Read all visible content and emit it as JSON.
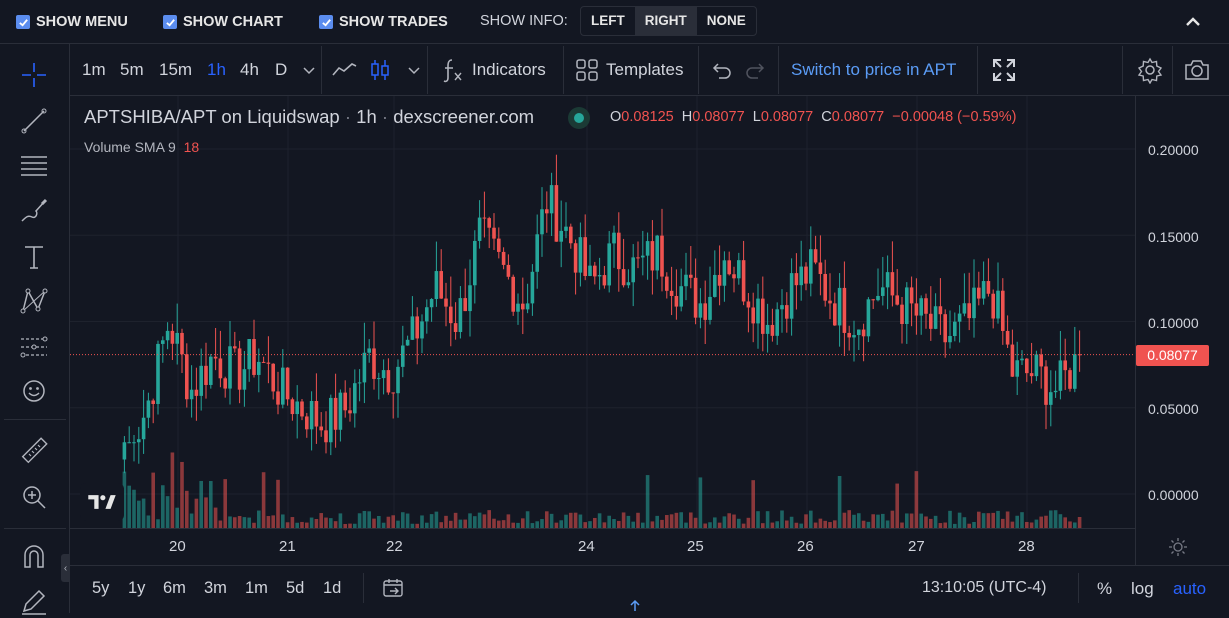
{
  "topbar": {
    "show_menu": "SHOW MENU",
    "show_chart": "SHOW CHART",
    "show_trades": "SHOW TRADES",
    "show_info_label": "SHOW INFO:",
    "info_options": [
      "LEFT",
      "RIGHT",
      "NONE"
    ],
    "info_selected": "RIGHT"
  },
  "toolbar": {
    "timeframes": [
      "1m",
      "5m",
      "15m",
      "1h",
      "4h",
      "D"
    ],
    "active_timeframe": "1h",
    "indicators_label": "Indicators",
    "templates_label": "Templates",
    "switch_label": "Switch to price in APT"
  },
  "legend": {
    "symbol": "APTSHIBA/APT on Liquidswap",
    "interval": "1h",
    "source": "dexscreener.com",
    "o_label": "O",
    "o_value": "0.08125",
    "h_label": "H",
    "h_value": "0.08077",
    "l_label": "L",
    "l_value": "0.08077",
    "c_label": "C",
    "c_value": "0.08077",
    "change": "−0.00048 (−0.59%)",
    "volume_label": "Volume",
    "sma_label": "SMA 9",
    "sma_value": "18"
  },
  "price_axis": {
    "labels": [
      "0.20000",
      "0.15000",
      "0.10000",
      "0.05000",
      "0.00000"
    ],
    "current_price": "0.08077"
  },
  "time_axis": {
    "labels": [
      "20",
      "21",
      "22",
      "24",
      "25",
      "26",
      "27",
      "28"
    ]
  },
  "bottom": {
    "ranges": [
      "5y",
      "1y",
      "6m",
      "3m",
      "1m",
      "5d",
      "1d"
    ],
    "clock": "13:10:05 (UTC-4)",
    "percent": "%",
    "log": "log",
    "auto": "auto"
  },
  "colors": {
    "background": "#131722",
    "up": "#26a69a",
    "down": "#ef5350",
    "accent": "#2962ff",
    "checkbox": "#5b8def"
  },
  "chart_data": {
    "type": "candlestick",
    "title": "",
    "price_range": [
      0,
      0.2
    ],
    "current_price": 0.08077,
    "days": [
      "20",
      "21",
      "22",
      "24",
      "25",
      "26",
      "27",
      "28"
    ],
    "approx_close_path": [
      0.02,
      0.05,
      0.1,
      0.06,
      0.08,
      0.07,
      0.08,
      0.06,
      0.05,
      0.04,
      0.05,
      0.08,
      0.07,
      0.09,
      0.12,
      0.1,
      0.15,
      0.13,
      0.11,
      0.17,
      0.15,
      0.12,
      0.14,
      0.13,
      0.14,
      0.12,
      0.11,
      0.14,
      0.12,
      0.1,
      0.12,
      0.13,
      0.11,
      0.1,
      0.12,
      0.11,
      0.1,
      0.09,
      0.1,
      0.12,
      0.07,
      0.07,
      0.06,
      0.08
    ]
  }
}
